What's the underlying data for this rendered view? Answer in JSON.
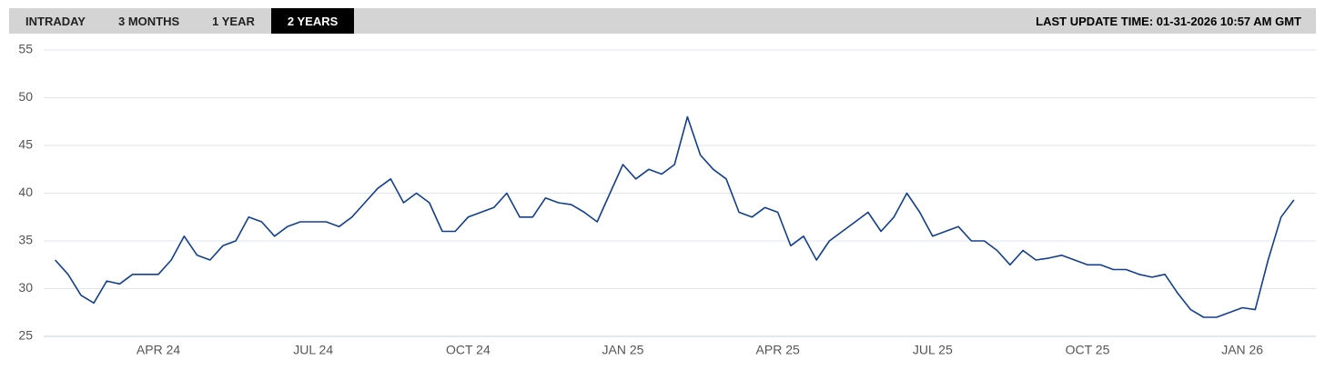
{
  "tabs": [
    "INTRADAY",
    "3 MONTHS",
    "1 YEAR",
    "2 YEARS"
  ],
  "selected_tab": 3,
  "last_update": "LAST UPDATE TIME: 01-31-2026 10:57 AM GMT",
  "chart_data": {
    "type": "line",
    "categories": [
      null,
      null,
      null,
      null,
      null,
      null,
      null,
      null,
      "APR 24",
      null,
      null,
      null,
      null,
      null,
      null,
      null,
      null,
      null,
      null,
      null,
      "JUL 24",
      null,
      null,
      null,
      null,
      null,
      null,
      null,
      null,
      null,
      null,
      null,
      "OCT 24",
      null,
      null,
      null,
      null,
      null,
      null,
      null,
      null,
      null,
      null,
      null,
      "JAN 25",
      null,
      null,
      null,
      null,
      null,
      null,
      null,
      null,
      null,
      null,
      null,
      "APR 25",
      null,
      null,
      null,
      null,
      null,
      null,
      null,
      null,
      null,
      null,
      null,
      "JUL 25",
      null,
      null,
      null,
      null,
      null,
      null,
      null,
      null,
      null,
      null,
      null,
      "OCT 25",
      null,
      null,
      null,
      null,
      null,
      null,
      null,
      null,
      null,
      null,
      null,
      "JAN 26",
      null,
      null,
      null,
      null
    ],
    "values": [
      33.0,
      31.5,
      29.3,
      28.5,
      30.8,
      30.5,
      31.5,
      31.5,
      31.5,
      33,
      35.5,
      33.5,
      33,
      34.5,
      35,
      37.5,
      37,
      35.5,
      36.5,
      37,
      37,
      37,
      36.5,
      37.5,
      39,
      40.5,
      41.5,
      39,
      40,
      39,
      36,
      36,
      37.5,
      38,
      38.5,
      40,
      37.5,
      37.5,
      39.5,
      39,
      38.8,
      38,
      37,
      40,
      43,
      41.5,
      42.5,
      42,
      43,
      48,
      44,
      42.5,
      41.5,
      38,
      37.5,
      38.5,
      38,
      34.5,
      35.5,
      33,
      35,
      36,
      37,
      38,
      36,
      37.5,
      40,
      38,
      35.5,
      36,
      36.5,
      35,
      35,
      34,
      32.5,
      34,
      33,
      33.2,
      33.5,
      33,
      32.5,
      32.5,
      32,
      32,
      31.5,
      31.2,
      31.5,
      29.5,
      27.8,
      27,
      27,
      27.5,
      28,
      27.8,
      33,
      37.5,
      39.3
    ],
    "color": "#123f8f",
    "ylim": [
      25,
      55
    ],
    "yticks": [
      25,
      30,
      35,
      40,
      45,
      50,
      55
    ],
    "grid": true
  }
}
